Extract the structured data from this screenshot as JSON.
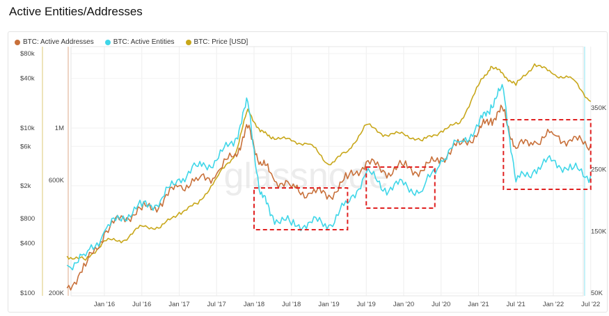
{
  "page": {
    "title": "Active Entities/Addresses"
  },
  "colors": {
    "addresses": "#c8703a",
    "entities": "#3fd6e8",
    "price": "#c8a71a",
    "highlight": "#e02020",
    "watermark": "#dddddd"
  },
  "legend": [
    {
      "label": "BTC: Active Addresses",
      "color": "#c8703a"
    },
    {
      "label": "BTC: Active Entities",
      "color": "#3fd6e8"
    },
    {
      "label": "BTC: Price [USD]",
      "color": "#c8a71a"
    }
  ],
  "watermark": "glassnode",
  "chart_data": {
    "type": "line",
    "title": "Active Entities/Addresses",
    "x_ticks": [
      "Jan '16",
      "Jul '16",
      "Jan '17",
      "Jul '17",
      "Jan '18",
      "Jul '18",
      "Jan '19",
      "Jul '19",
      "Jan '20",
      "Jul '20",
      "Jan '21",
      "Jul '21",
      "Jan '22",
      "Jul '22"
    ],
    "price_axis": {
      "scale": "log",
      "ticks": [
        "$80k",
        "$40k",
        "$10k",
        "$6k",
        "$2k",
        "$800",
        "$400",
        "$100"
      ],
      "range": [
        100,
        80000
      ]
    },
    "addresses_axis": {
      "scale": "log",
      "ticks": [
        "1M",
        "600K",
        "200K"
      ]
    },
    "entities_axis": {
      "ticks": [
        "350K",
        "250K",
        "150K",
        "50K"
      ],
      "range": [
        50000,
        400000
      ]
    },
    "series": [
      {
        "name": "BTC: Active Addresses",
        "axis": "addresses",
        "color": "#c8703a",
        "x": [
          "2015-07",
          "2015-10",
          "2016-01",
          "2016-04",
          "2016-07",
          "2016-10",
          "2017-01",
          "2017-04",
          "2017-07",
          "2017-10",
          "2017-12",
          "2018-02",
          "2018-04",
          "2018-07",
          "2018-10",
          "2019-01",
          "2019-04",
          "2019-07",
          "2019-10",
          "2020-01",
          "2020-04",
          "2020-07",
          "2020-10",
          "2021-01",
          "2021-03",
          "2021-05",
          "2021-07",
          "2021-10",
          "2022-01",
          "2022-04",
          "2022-07"
        ],
        "values": [
          210000,
          260000,
          360000,
          420000,
          450000,
          480000,
          570000,
          600000,
          640000,
          780000,
          1000000,
          720000,
          620000,
          560000,
          530000,
          520000,
          610000,
          720000,
          650000,
          690000,
          660000,
          750000,
          850000,
          960000,
          1100000,
          1180000,
          820000,
          880000,
          940000,
          880000,
          850000
        ]
      },
      {
        "name": "BTC: Active Entities",
        "axis": "entities",
        "color": "#3fd6e8",
        "x": [
          "2015-07",
          "2015-10",
          "2016-01",
          "2016-04",
          "2016-07",
          "2016-10",
          "2017-01",
          "2017-04",
          "2017-07",
          "2017-10",
          "2017-12",
          "2018-02",
          "2018-04",
          "2018-07",
          "2018-10",
          "2019-01",
          "2019-04",
          "2019-07",
          "2019-10",
          "2020-01",
          "2020-04",
          "2020-07",
          "2020-10",
          "2021-01",
          "2021-03",
          "2021-05",
          "2021-07",
          "2021-10",
          "2022-01",
          "2022-04",
          "2022-07"
        ],
        "values": [
          95000,
          110000,
          150000,
          175000,
          190000,
          200000,
          235000,
          255000,
          265000,
          300000,
          360000,
          210000,
          175000,
          160000,
          165000,
          160000,
          195000,
          245000,
          220000,
          225000,
          215000,
          265000,
          295000,
          320000,
          355000,
          380000,
          230000,
          250000,
          265000,
          250000,
          240000
        ]
      },
      {
        "name": "BTC: Price [USD]",
        "axis": "price",
        "color": "#c8a71a",
        "x": [
          "2015-07",
          "2015-10",
          "2016-01",
          "2016-04",
          "2016-07",
          "2016-10",
          "2017-01",
          "2017-04",
          "2017-07",
          "2017-10",
          "2017-12",
          "2018-02",
          "2018-04",
          "2018-07",
          "2018-10",
          "2019-01",
          "2019-04",
          "2019-07",
          "2019-10",
          "2020-01",
          "2020-04",
          "2020-07",
          "2020-10",
          "2021-01",
          "2021-03",
          "2021-05",
          "2021-07",
          "2021-10",
          "2022-01",
          "2022-04",
          "2022-07"
        ],
        "values": [
          280,
          250,
          430,
          430,
          650,
          620,
          950,
          1200,
          2500,
          4800,
          17000,
          9000,
          7800,
          7000,
          6400,
          3600,
          5200,
          11000,
          8300,
          8500,
          7000,
          9200,
          11500,
          33000,
          56000,
          45000,
          33000,
          60000,
          45000,
          40000,
          21000
        ]
      }
    ],
    "annotations": [
      {
        "type": "dashed-box",
        "from": "2018-01",
        "to": "2019-04"
      },
      {
        "type": "dashed-box",
        "from": "2019-07",
        "to": "2020-06"
      },
      {
        "type": "dashed-box",
        "from": "2021-05",
        "to": "2022-07"
      }
    ]
  }
}
